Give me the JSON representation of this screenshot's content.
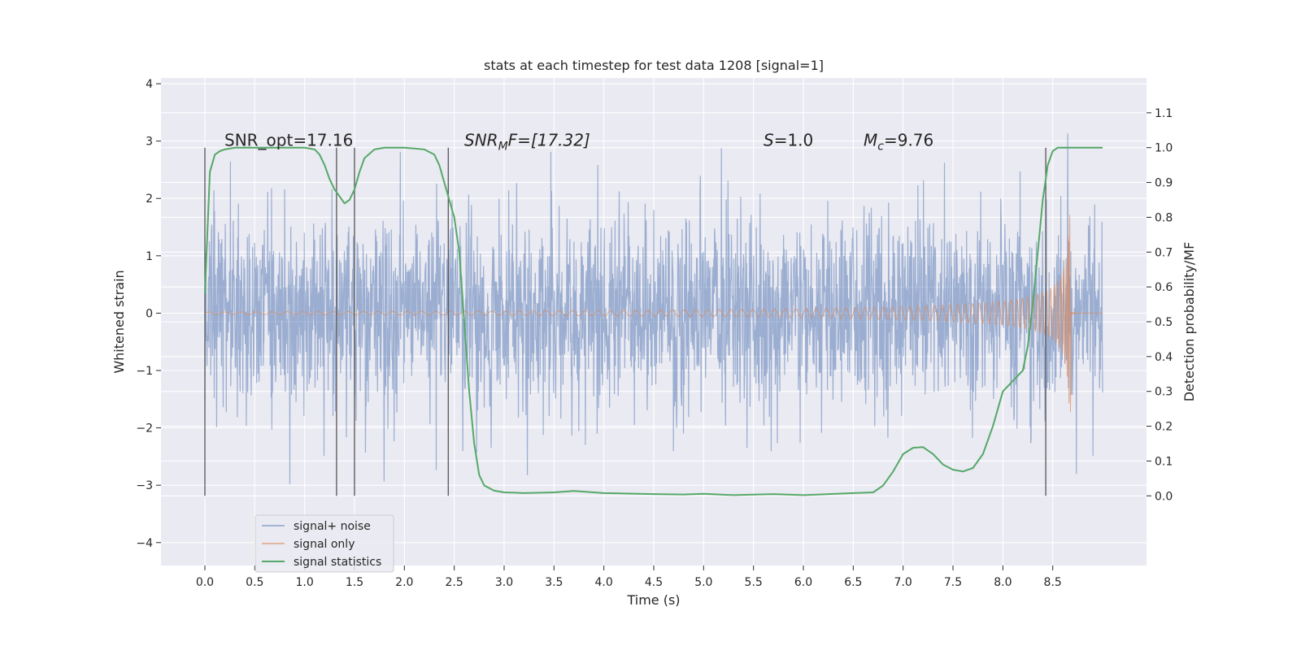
{
  "chart_data": {
    "type": "line",
    "title": "stats at each timestep for test data 1208 [signal=1]",
    "xlabel": "Time (s)",
    "ylabel_left": "Whitened strain",
    "ylabel_right": "Detection probability/MF",
    "xlim": [
      -0.44,
      9.44
    ],
    "ylim_left": [
      -4.4,
      4.1
    ],
    "ylim_right": [
      -0.2,
      1.2
    ],
    "x_ticks": [
      "0.0",
      "0.5",
      "1.0",
      "1.5",
      "2.0",
      "2.5",
      "3.0",
      "3.5",
      "4.0",
      "4.5",
      "5.0",
      "5.5",
      "6.0",
      "6.5",
      "7.0",
      "7.5",
      "8.0",
      "8.5"
    ],
    "y_ticks_left": [
      "4",
      "3",
      "2",
      "1",
      "0",
      "−1",
      "−2",
      "−3",
      "−4"
    ],
    "y_ticks_right": [
      "1.1",
      "1.0",
      "0.9",
      "0.8",
      "0.7",
      "0.6",
      "0.5",
      "0.4",
      "0.3",
      "0.2",
      "0.1",
      "0.0"
    ],
    "grid": true,
    "legend_position": "lower-left",
    "annotations": {
      "snr_opt": "SNR_opt=17.16",
      "snr_mf_main": "SNR",
      "snr_mf_sub": "M",
      "snr_mf_rest": "F=[17.32]",
      "s_main": "S",
      "s_rest": "=1.0",
      "mc_main": "M",
      "mc_sub": "c",
      "mc_rest": "=9.76"
    },
    "vertical_markers_s": [
      0.0,
      1.32,
      1.5,
      2.44,
      8.43
    ],
    "series": [
      {
        "name": "signal+ noise",
        "color": "#4c72b0",
        "axis": "left",
        "description_range": [
          0.0,
          9.0
        ],
        "amplitude_rms": 0.85
      },
      {
        "name": "signal only",
        "color": "#dd8452",
        "axis": "left",
        "chirp_end_s": 8.68,
        "peak_amplitude": 2.0
      },
      {
        "name": "signal statistics",
        "color": "#55a868",
        "axis": "right",
        "x": [
          0.0,
          0.05,
          0.1,
          0.15,
          0.2,
          0.3,
          0.5,
          0.8,
          1.0,
          1.1,
          1.15,
          1.2,
          1.25,
          1.3,
          1.35,
          1.4,
          1.45,
          1.5,
          1.55,
          1.6,
          1.7,
          1.8,
          2.0,
          2.2,
          2.3,
          2.35,
          2.4,
          2.45,
          2.5,
          2.55,
          2.6,
          2.65,
          2.7,
          2.75,
          2.8,
          2.9,
          3.0,
          3.2,
          3.5,
          3.7,
          4.0,
          4.5,
          4.8,
          5.0,
          5.3,
          5.7,
          6.0,
          6.5,
          6.7,
          6.8,
          6.9,
          7.0,
          7.1,
          7.2,
          7.3,
          7.4,
          7.5,
          7.6,
          7.7,
          7.8,
          7.9,
          8.0,
          8.1,
          8.2,
          8.25,
          8.3,
          8.35,
          8.4,
          8.45,
          8.5,
          8.55,
          8.6,
          8.7,
          8.8,
          9.0
        ],
        "values": [
          0.58,
          0.93,
          0.98,
          0.99,
          0.995,
          1.0,
          1.0,
          1.0,
          1.0,
          0.995,
          0.98,
          0.95,
          0.91,
          0.88,
          0.86,
          0.84,
          0.85,
          0.88,
          0.93,
          0.97,
          0.995,
          1.0,
          1.0,
          0.995,
          0.98,
          0.95,
          0.9,
          0.85,
          0.8,
          0.7,
          0.5,
          0.3,
          0.15,
          0.06,
          0.03,
          0.015,
          0.01,
          0.008,
          0.01,
          0.014,
          0.008,
          0.005,
          0.004,
          0.006,
          0.002,
          0.005,
          0.002,
          0.008,
          0.01,
          0.03,
          0.07,
          0.12,
          0.138,
          0.14,
          0.12,
          0.09,
          0.075,
          0.07,
          0.08,
          0.12,
          0.2,
          0.3,
          0.33,
          0.36,
          0.43,
          0.55,
          0.7,
          0.85,
          0.95,
          0.99,
          1.0,
          1.0,
          1.0,
          1.0,
          1.0
        ]
      }
    ]
  }
}
